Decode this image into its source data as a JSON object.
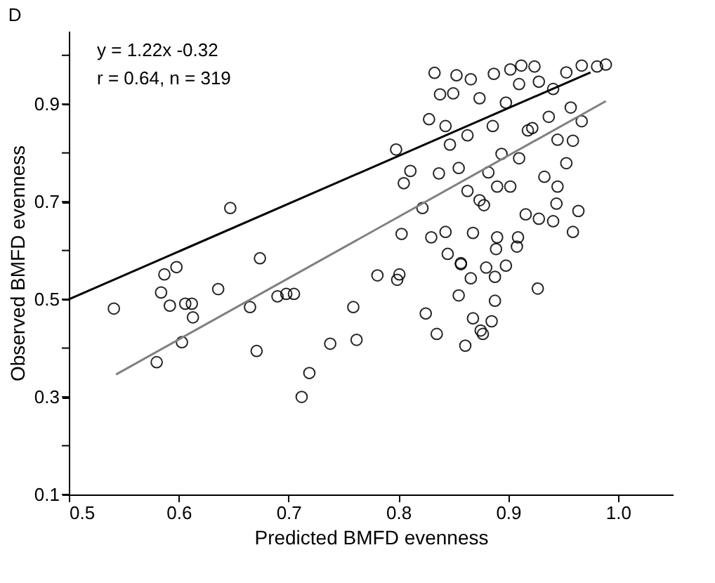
{
  "chart_data": {
    "type": "scatter",
    "title": "D",
    "xlabel": "Predicted BMFD evenness",
    "ylabel": "Observed BMFD evenness",
    "annotations": [
      "y = 1.22x -0.32",
      "r = 0.64, n = 319"
    ],
    "xlim": [
      0.5,
      1.05
    ],
    "ylim": [
      0.1,
      1.05
    ],
    "xticks": [
      {
        "value": 0.5,
        "label": "0.5"
      },
      {
        "value": 0.6,
        "label": "0.6"
      },
      {
        "value": 0.7,
        "label": "0.7"
      },
      {
        "value": 0.8,
        "label": "0.8"
      },
      {
        "value": 0.9,
        "label": "0.9"
      },
      {
        "value": 1.0,
        "label": "1.0"
      }
    ],
    "yticks": [
      0.1,
      {
        "value": 0.2,
        "label": null
      },
      0.3,
      {
        "value": 0.4,
        "label": null
      },
      0.5,
      {
        "value": 0.6,
        "label": null
      },
      0.7,
      {
        "value": 0.8,
        "label": null
      },
      0.9,
      {
        "value": 1.0,
        "label": null
      }
    ],
    "grid": false,
    "series": [
      {
        "marker": "circle",
        "color": "#000000",
        "x": [
          0.541,
          0.58,
          0.584,
          0.587,
          0.592,
          0.598,
          0.603,
          0.606,
          0.612,
          0.613,
          0.636,
          0.647,
          0.665,
          0.671,
          0.674,
          0.69,
          0.698,
          0.705,
          0.712,
          0.719,
          0.738,
          0.759,
          0.762,
          0.781,
          0.798,
          0.799,
          0.801,
          0.803,
          0.805,
          0.833,
          0.853,
          0.838,
          0.85,
          0.866,
          0.887,
          0.902,
          0.912,
          0.924,
          0.953,
          0.967,
          0.981,
          0.989,
          0.828,
          0.843,
          0.863,
          0.874,
          0.886,
          0.898,
          0.91,
          0.928,
          0.941,
          0.957,
          0.967,
          0.922,
          0.937,
          0.945,
          0.959,
          0.811,
          0.837,
          0.847,
          0.855,
          0.863,
          0.874,
          0.882,
          0.894,
          0.902,
          0.91,
          0.918,
          0.89,
          0.933,
          0.945,
          0.953,
          0.822,
          0.83,
          0.843,
          0.845,
          0.857,
          0.868,
          0.878,
          0.89,
          0.898,
          0.916,
          0.928,
          0.941,
          0.944,
          0.964,
          0.959,
          0.909,
          0.857,
          0.88,
          0.866,
          0.888,
          0.927,
          0.855,
          0.888,
          0.825,
          0.868,
          0.885,
          0.835,
          0.875,
          0.877,
          0.861,
          0.908,
          0.889
        ],
        "values": [
          0.481,
          0.371,
          0.514,
          0.551,
          0.487,
          0.566,
          0.412,
          0.491,
          0.491,
          0.463,
          0.521,
          0.687,
          0.484,
          0.394,
          0.584,
          0.506,
          0.511,
          0.511,
          0.3,
          0.349,
          0.409,
          0.484,
          0.417,
          0.549,
          0.807,
          0.54,
          0.551,
          0.634,
          0.738,
          0.964,
          0.959,
          0.92,
          0.922,
          0.951,
          0.962,
          0.971,
          0.979,
          0.977,
          0.965,
          0.979,
          0.977,
          0.981,
          0.869,
          0.855,
          0.836,
          0.912,
          0.855,
          0.903,
          0.941,
          0.946,
          0.931,
          0.893,
          0.865,
          0.851,
          0.874,
          0.827,
          0.825,
          0.763,
          0.758,
          0.817,
          0.769,
          0.722,
          0.703,
          0.76,
          0.798,
          0.731,
          0.789,
          0.846,
          0.731,
          0.751,
          0.731,
          0.779,
          0.687,
          0.627,
          0.638,
          0.593,
          0.574,
          0.636,
          0.693,
          0.627,
          0.569,
          0.674,
          0.665,
          0.66,
          0.696,
          0.681,
          0.638,
          0.627,
          0.572,
          0.565,
          0.543,
          0.546,
          0.522,
          0.508,
          0.497,
          0.471,
          0.461,
          0.455,
          0.429,
          0.436,
          0.429,
          0.405,
          0.608,
          0.603
        ]
      },
      {
        "type": "line",
        "marker": "none",
        "line_style": "solid",
        "color": "#000000",
        "x": [
          0.5,
          0.975
        ],
        "values": [
          0.5,
          0.965
        ]
      },
      {
        "type": "line",
        "marker": "none",
        "line_style": "solid",
        "color": "#808080",
        "x": [
          0.543,
          0.989
        ],
        "values": [
          0.346,
          0.906
        ]
      }
    ]
  }
}
